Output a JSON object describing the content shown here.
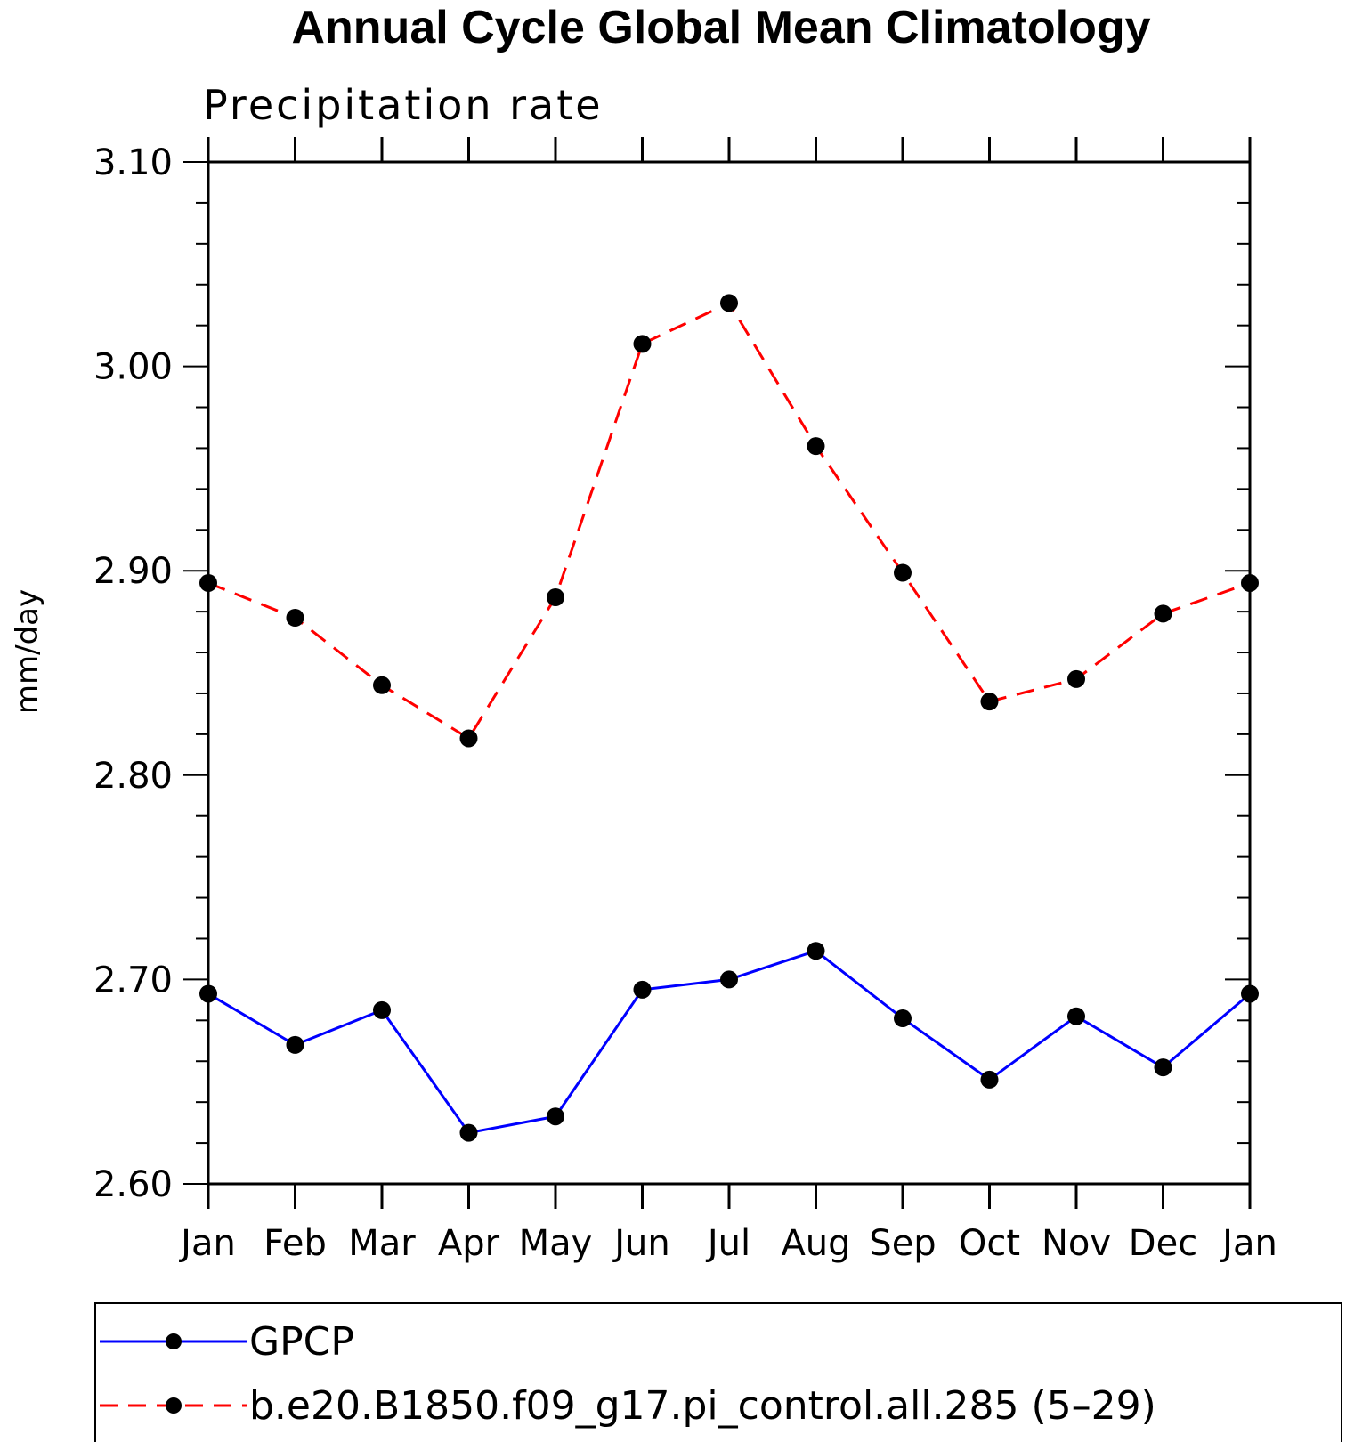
{
  "chart_data": {
    "type": "line",
    "title": "Annual Cycle Global Mean Climatology",
    "subtitle": "Precipitation rate",
    "xlabel": "",
    "ylabel": "mm/day",
    "categories": [
      "Jan",
      "Feb",
      "Mar",
      "Apr",
      "May",
      "Jun",
      "Jul",
      "Aug",
      "Sep",
      "Oct",
      "Nov",
      "Dec",
      "Jan"
    ],
    "ylim": [
      2.6,
      3.1
    ],
    "yticks": [
      "2.60",
      "2.70",
      "2.80",
      "2.90",
      "3.00",
      "3.10"
    ],
    "y_minor_step": 0.02,
    "legend_position": "bottom",
    "series": [
      {
        "name": "GPCP",
        "color": "#0000ff",
        "style": "solid",
        "marker": "filled-circle",
        "values": [
          2.693,
          2.668,
          2.685,
          2.625,
          2.633,
          2.695,
          2.7,
          2.714,
          2.681,
          2.651,
          2.682,
          2.657,
          2.693
        ]
      },
      {
        "name": "b.e20.B1850.f09_g17.pi_control.all.285 (5–29)",
        "color": "#ff0000",
        "style": "dashed",
        "marker": "filled-circle",
        "values": [
          2.894,
          2.877,
          2.844,
          2.818,
          2.887,
          3.011,
          3.031,
          2.961,
          2.899,
          2.836,
          2.847,
          2.879,
          2.894
        ]
      }
    ]
  }
}
